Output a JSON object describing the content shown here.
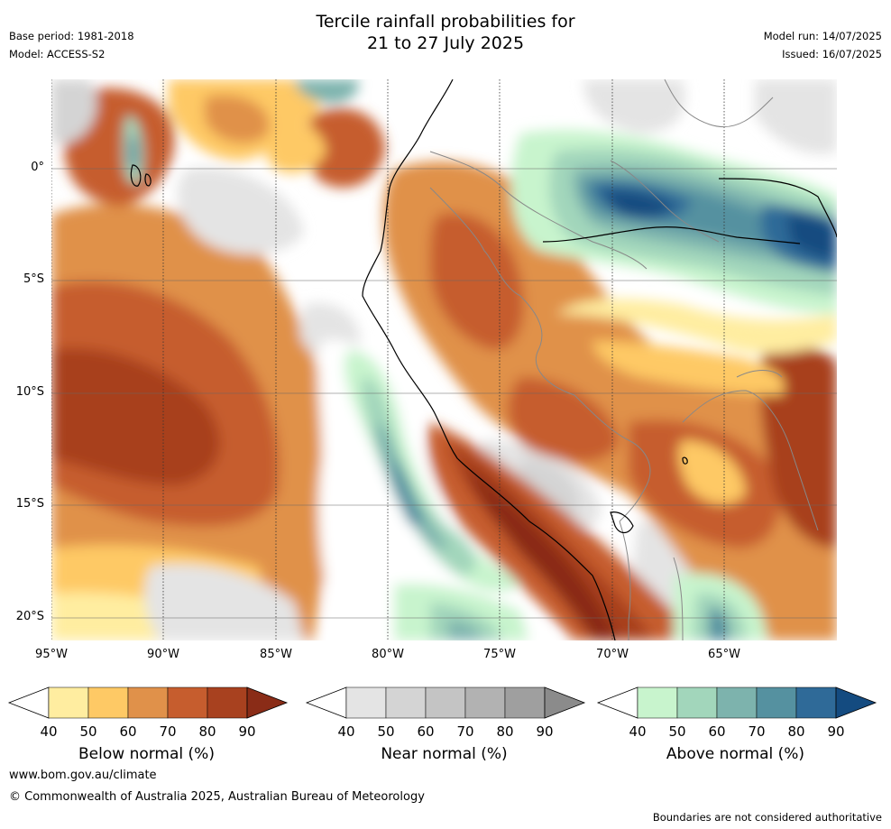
{
  "title_line1": "Tercile rainfall probabilities for",
  "title_line2": "21 to 27 July 2025",
  "meta": {
    "base_period": "Base period: 1981-2018",
    "model": "Model: ACCESS-S2",
    "model_run": "Model run: 14/07/2025",
    "issued": "Issued: 16/07/2025"
  },
  "axes": {
    "lat_labels": [
      "0°",
      "5°S",
      "10°S",
      "15°S",
      "20°S"
    ],
    "lon_labels": [
      "95°W",
      "90°W",
      "85°W",
      "80°W",
      "75°W",
      "70°W",
      "65°W"
    ]
  },
  "colorbars": [
    {
      "title": "Below normal (%)",
      "ticks": [
        "40",
        "50",
        "60",
        "70",
        "80",
        "90"
      ],
      "colors": [
        "#ffeda0",
        "#fec965",
        "#e0914a",
        "#c65d2e",
        "#a8411f",
        "#8a2c17"
      ]
    },
    {
      "title": "Near normal (%)",
      "ticks": [
        "40",
        "50",
        "60",
        "70",
        "80",
        "90"
      ],
      "colors": [
        "#e4e4e4",
        "#d4d4d4",
        "#c4c4c4",
        "#b2b2b2",
        "#9f9f9f",
        "#8b8b8b"
      ]
    },
    {
      "title": "Above normal (%)",
      "ticks": [
        "40",
        "50",
        "60",
        "70",
        "80",
        "90"
      ],
      "colors": [
        "#c8f4cd",
        "#a2d6bb",
        "#7db3ad",
        "#5591a0",
        "#2f6a98",
        "#144b80"
      ]
    }
  ],
  "footer": {
    "url": "www.bom.gov.au/climate",
    "copyright": "© Commonwealth of Australia 2025, Australian Bureau of Meteorology",
    "disclaimer": "Boundaries are not considered authoritative"
  }
}
